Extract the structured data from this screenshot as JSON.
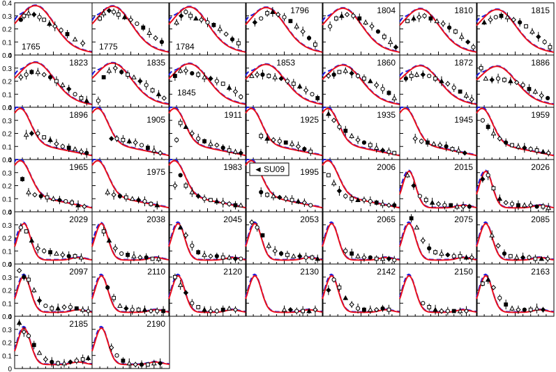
{
  "figure": {
    "legend": {
      "marker": "◄",
      "label": "SU09"
    },
    "colors": {
      "red": "#e8101e",
      "blue": "#1a1adc",
      "frame": "#000000"
    }
  },
  "chart_data": {
    "type": "scatter",
    "ylim": [
      0,
      0.4
    ],
    "y_ticks": [
      "0",
      "0.1",
      "0.2",
      "0.3",
      "0.4"
    ],
    "xlabel": "",
    "ylabel": "",
    "grid": false,
    "legend_placement": "inside panel 1995",
    "panels": [
      {
        "energy": "1765",
        "x": [
          0.08,
          0.12,
          0.18,
          0.25,
          0.32,
          0.38,
          0.45,
          0.52,
          0.6,
          0.68,
          0.78,
          0.88
        ],
        "y": [
          0.27,
          0.3,
          0.32,
          0.31,
          0.29,
          0.27,
          0.24,
          0.22,
          0.19,
          0.16,
          0.12,
          0.09
        ]
      },
      {
        "energy": "1775",
        "x": [
          0.1,
          0.15,
          0.22,
          0.28,
          0.34,
          0.42,
          0.5,
          0.58,
          0.66,
          0.74,
          0.82,
          0.9
        ],
        "y": [
          0.28,
          0.32,
          0.34,
          0.33,
          0.31,
          0.29,
          0.27,
          0.24,
          0.21,
          0.17,
          0.13,
          0.1
        ]
      },
      {
        "energy": "1784",
        "x": [
          0.1,
          0.16,
          0.22,
          0.28,
          0.35,
          0.42,
          0.5,
          0.58,
          0.66,
          0.74,
          0.82,
          0.9
        ],
        "y": [
          0.25,
          0.3,
          0.33,
          0.3,
          0.28,
          0.27,
          0.25,
          0.23,
          0.2,
          0.16,
          0.12,
          0.09
        ]
      },
      {
        "energy": "1796",
        "x": [
          0.12,
          0.2,
          0.28,
          0.35,
          0.42,
          0.5,
          0.58,
          0.66,
          0.74,
          0.82,
          0.9
        ],
        "y": [
          0.25,
          0.28,
          0.32,
          0.33,
          0.31,
          0.29,
          0.26,
          0.22,
          0.18,
          0.13,
          0.08
        ]
      },
      {
        "energy": "1804",
        "x": [
          0.1,
          0.18,
          0.25,
          0.32,
          0.4,
          0.48,
          0.56,
          0.64,
          0.72,
          0.8,
          0.88,
          0.95
        ],
        "y": [
          0.22,
          0.28,
          0.3,
          0.31,
          0.3,
          0.28,
          0.25,
          0.22,
          0.18,
          0.14,
          0.1,
          0.06
        ]
      },
      {
        "energy": "1810",
        "x": [
          0.1,
          0.18,
          0.25,
          0.32,
          0.4,
          0.48,
          0.56,
          0.64,
          0.72,
          0.8,
          0.88,
          0.95
        ],
        "y": [
          0.26,
          0.28,
          0.29,
          0.3,
          0.28,
          0.26,
          0.24,
          0.21,
          0.18,
          0.14,
          0.1,
          0.06
        ]
      },
      {
        "energy": "1815",
        "x": [
          0.1,
          0.18,
          0.25,
          0.32,
          0.4,
          0.48,
          0.56,
          0.64,
          0.72,
          0.8,
          0.88,
          0.95
        ],
        "y": [
          0.25,
          0.27,
          0.29,
          0.3,
          0.29,
          0.27,
          0.25,
          0.22,
          0.18,
          0.14,
          0.1,
          0.06
        ]
      },
      {
        "energy": "1823",
        "x": [
          0.08,
          0.15,
          0.22,
          0.3,
          0.38,
          0.46,
          0.54,
          0.62,
          0.7,
          0.78,
          0.86,
          0.93
        ],
        "y": [
          0.23,
          0.25,
          0.27,
          0.27,
          0.25,
          0.23,
          0.2,
          0.17,
          0.14,
          0.1,
          0.07,
          0.05
        ]
      },
      {
        "energy": "1835",
        "x": [
          0.08,
          0.15,
          0.22,
          0.3,
          0.38,
          0.46,
          0.54,
          0.62,
          0.7,
          0.78,
          0.86,
          0.93
        ],
        "y": [
          0.05,
          0.23,
          0.28,
          0.3,
          0.27,
          0.25,
          0.23,
          0.2,
          0.17,
          0.13,
          0.1,
          0.07
        ]
      },
      {
        "energy": "1845",
        "x": [
          0.08,
          0.15,
          0.22,
          0.3,
          0.38,
          0.46,
          0.54,
          0.62,
          0.7,
          0.78,
          0.86,
          0.93
        ],
        "y": [
          0.24,
          0.28,
          0.28,
          0.26,
          0.25,
          0.23,
          0.22,
          0.2,
          0.18,
          0.15,
          0.12,
          0.08
        ]
      },
      {
        "energy": "1853",
        "x": [
          0.08,
          0.15,
          0.22,
          0.3,
          0.38,
          0.46,
          0.54,
          0.62,
          0.7,
          0.78,
          0.86,
          0.93
        ],
        "y": [
          0.24,
          0.25,
          0.25,
          0.24,
          0.23,
          0.22,
          0.2,
          0.18,
          0.16,
          0.13,
          0.1,
          0.07
        ]
      },
      {
        "energy": "1860",
        "x": [
          0.08,
          0.15,
          0.22,
          0.3,
          0.38,
          0.46,
          0.54,
          0.62,
          0.7,
          0.78,
          0.86,
          0.93
        ],
        "y": [
          0.24,
          0.25,
          0.27,
          0.28,
          0.26,
          0.24,
          0.22,
          0.2,
          0.17,
          0.14,
          0.11,
          0.07
        ]
      },
      {
        "energy": "1872",
        "x": [
          0.08,
          0.15,
          0.22,
          0.3,
          0.38,
          0.46,
          0.54,
          0.62,
          0.7,
          0.78,
          0.86,
          0.93
        ],
        "y": [
          0.22,
          0.24,
          0.25,
          0.25,
          0.24,
          0.22,
          0.2,
          0.18,
          0.15,
          0.12,
          0.09,
          0.06
        ]
      },
      {
        "energy": "1886",
        "x": [
          0.06,
          0.12,
          0.2,
          0.28,
          0.36,
          0.44,
          0.52,
          0.6,
          0.68,
          0.76,
          0.84,
          0.92
        ],
        "y": [
          0.3,
          0.22,
          0.21,
          0.22,
          0.21,
          0.2,
          0.19,
          0.17,
          0.14,
          0.12,
          0.09,
          0.07
        ]
      },
      {
        "energy": "1896",
        "x": [
          0.15,
          0.22,
          0.3,
          0.38,
          0.46,
          0.54,
          0.62,
          0.7,
          0.78,
          0.86,
          0.93
        ],
        "y": [
          0.19,
          0.2,
          0.2,
          0.17,
          0.15,
          0.12,
          0.1,
          0.09,
          0.08,
          0.06,
          0.05
        ]
      },
      {
        "energy": "1905",
        "x": [
          0.25,
          0.32,
          0.4,
          0.48,
          0.56,
          0.64,
          0.72,
          0.8,
          0.88
        ],
        "y": [
          0.16,
          0.16,
          0.15,
          0.14,
          0.13,
          0.11,
          0.09,
          0.07,
          0.05
        ]
      },
      {
        "energy": "1911",
        "x": [
          0.1,
          0.15,
          0.22,
          0.3,
          0.38,
          0.46,
          0.54,
          0.62,
          0.7,
          0.78,
          0.86,
          0.93
        ],
        "y": [
          0.15,
          0.28,
          0.25,
          0.2,
          0.16,
          0.14,
          0.12,
          0.11,
          0.09,
          0.07,
          0.06,
          0.05
        ]
      },
      {
        "energy": "1925",
        "x": [
          0.2,
          0.28,
          0.36,
          0.44,
          0.52,
          0.6,
          0.68,
          0.76,
          0.84
        ],
        "y": [
          0.18,
          0.16,
          0.15,
          0.14,
          0.13,
          0.12,
          0.1,
          0.08,
          0.06
        ]
      },
      {
        "energy": "1935",
        "x": [
          0.08,
          0.15,
          0.22,
          0.3,
          0.38,
          0.46,
          0.54,
          0.62,
          0.7,
          0.78,
          0.86,
          0.93
        ],
        "y": [
          0.35,
          0.3,
          0.25,
          0.22,
          0.18,
          0.15,
          0.13,
          0.11,
          0.09,
          0.07,
          0.06,
          0.05
        ]
      },
      {
        "energy": "1945",
        "x": [
          0.2,
          0.28,
          0.36,
          0.44,
          0.52,
          0.6,
          0.68,
          0.76,
          0.84
        ],
        "y": [
          0.16,
          0.14,
          0.13,
          0.12,
          0.11,
          0.1,
          0.08,
          0.07,
          0.05
        ]
      },
      {
        "energy": "1959",
        "x": [
          0.08,
          0.15,
          0.22,
          0.3,
          0.38,
          0.46,
          0.54,
          0.62,
          0.7,
          0.78,
          0.86,
          0.93
        ],
        "y": [
          0.3,
          0.25,
          0.2,
          0.16,
          0.13,
          0.11,
          0.1,
          0.09,
          0.08,
          0.07,
          0.06,
          0.05
        ]
      },
      {
        "energy": "1965",
        "x": [
          0.1,
          0.18,
          0.26,
          0.34,
          0.42,
          0.5,
          0.58,
          0.66,
          0.74,
          0.82,
          0.9
        ],
        "y": [
          0.25,
          0.15,
          0.13,
          0.12,
          0.11,
          0.1,
          0.09,
          0.08,
          0.07,
          0.05,
          0.04
        ]
      },
      {
        "energy": "1975",
        "x": [
          0.2,
          0.28,
          0.36,
          0.44,
          0.52,
          0.6,
          0.68,
          0.76,
          0.84
        ],
        "y": [
          0.15,
          0.13,
          0.12,
          0.11,
          0.1,
          0.09,
          0.08,
          0.06,
          0.05
        ]
      },
      {
        "energy": "1983",
        "x": [
          0.08,
          0.15,
          0.22,
          0.3,
          0.38,
          0.46,
          0.54,
          0.62,
          0.7,
          0.78,
          0.86,
          0.93
        ],
        "y": [
          0.2,
          0.28,
          0.2,
          0.15,
          0.12,
          0.1,
          0.09,
          0.08,
          0.07,
          0.06,
          0.05,
          0.05
        ]
      },
      {
        "energy": "1995",
        "x": [
          0.2,
          0.28,
          0.36,
          0.44,
          0.52,
          0.6,
          0.68,
          0.76,
          0.84
        ],
        "y": [
          0.15,
          0.13,
          0.12,
          0.11,
          0.1,
          0.09,
          0.08,
          0.07,
          0.05
        ]
      },
      {
        "energy": "2006",
        "x": [
          0.08,
          0.15,
          0.22,
          0.3,
          0.38,
          0.46,
          0.54,
          0.62,
          0.7,
          0.78,
          0.86,
          0.93
        ],
        "y": [
          0.28,
          0.22,
          0.16,
          0.12,
          0.1,
          0.09,
          0.09,
          0.08,
          0.07,
          0.06,
          0.05,
          0.05
        ]
      },
      {
        "energy": "2015",
        "x": [
          0.1,
          0.18,
          0.26,
          0.34,
          0.42,
          0.5,
          0.58,
          0.66,
          0.74,
          0.82,
          0.9
        ],
        "y": [
          0.28,
          0.2,
          0.12,
          0.09,
          0.07,
          0.06,
          0.05,
          0.05,
          0.04,
          0.04,
          0.04
        ]
      },
      {
        "energy": "2026",
        "x": [
          0.08,
          0.15,
          0.22,
          0.3,
          0.38,
          0.46,
          0.54,
          0.62,
          0.7,
          0.78,
          0.86,
          0.93
        ],
        "y": [
          0.25,
          0.28,
          0.18,
          0.1,
          0.07,
          0.06,
          0.05,
          0.05,
          0.05,
          0.04,
          0.04,
          0.03
        ]
      },
      {
        "energy": "2029",
        "x": [
          0.08,
          0.15,
          0.22,
          0.3,
          0.38,
          0.46,
          0.54,
          0.62,
          0.7,
          0.78,
          0.86
        ],
        "y": [
          0.28,
          0.25,
          0.18,
          0.12,
          0.1,
          0.09,
          0.08,
          0.07,
          0.06,
          0.06,
          0.05
        ]
      },
      {
        "energy": "2038",
        "x": [
          0.15,
          0.22,
          0.3,
          0.38,
          0.46,
          0.54,
          0.62,
          0.7,
          0.78,
          0.86
        ],
        "y": [
          0.25,
          0.18,
          0.12,
          0.08,
          0.07,
          0.06,
          0.05,
          0.05,
          0.04,
          0.04
        ]
      },
      {
        "energy": "2045",
        "x": [
          0.15,
          0.22,
          0.3,
          0.38,
          0.46,
          0.54,
          0.62,
          0.7,
          0.78,
          0.86,
          0.93
        ],
        "y": [
          0.28,
          0.22,
          0.14,
          0.09,
          0.07,
          0.06,
          0.06,
          0.05,
          0.05,
          0.04,
          0.04
        ]
      },
      {
        "energy": "2053",
        "x": [
          0.08,
          0.15,
          0.22,
          0.3,
          0.38,
          0.46,
          0.54,
          0.62,
          0.7,
          0.78,
          0.86,
          0.93
        ],
        "y": [
          0.32,
          0.28,
          0.22,
          0.14,
          0.1,
          0.08,
          0.07,
          0.06,
          0.06,
          0.05,
          0.05,
          0.04
        ]
      },
      {
        "energy": "2065",
        "x": [
          0.3,
          0.38,
          0.46,
          0.54,
          0.62,
          0.7,
          0.78,
          0.86,
          0.93
        ],
        "y": [
          0.1,
          0.08,
          0.06,
          0.05,
          0.05,
          0.04,
          0.04,
          0.04,
          0.03
        ]
      },
      {
        "energy": "2075",
        "x": [
          0.15,
          0.22,
          0.3,
          0.38,
          0.46,
          0.54,
          0.62,
          0.7,
          0.78,
          0.86,
          0.93
        ],
        "y": [
          0.35,
          0.28,
          0.18,
          0.12,
          0.09,
          0.08,
          0.07,
          0.06,
          0.06,
          0.05,
          0.05
        ]
      },
      {
        "energy": "2085",
        "x": [
          0.2,
          0.28,
          0.36,
          0.44,
          0.52,
          0.6,
          0.68,
          0.76,
          0.84,
          0.92
        ],
        "y": [
          0.22,
          0.14,
          0.08,
          0.06,
          0.05,
          0.05,
          0.05,
          0.04,
          0.04,
          0.04
        ]
      },
      {
        "energy": "2097",
        "x": [
          0.06,
          0.12,
          0.18,
          0.25,
          0.32,
          0.4,
          0.48,
          0.56,
          0.64,
          0.72,
          0.8,
          0.88,
          0.95
        ],
        "y": [
          0.35,
          0.3,
          0.28,
          0.2,
          0.12,
          0.08,
          0.06,
          0.06,
          0.07,
          0.07,
          0.06,
          0.05,
          0.04
        ]
      },
      {
        "energy": "2110",
        "x": [
          0.2,
          0.28,
          0.36,
          0.44,
          0.52,
          0.6,
          0.68,
          0.76,
          0.84,
          0.92
        ],
        "y": [
          0.22,
          0.14,
          0.08,
          0.06,
          0.05,
          0.05,
          0.05,
          0.04,
          0.04,
          0.04
        ]
      },
      {
        "energy": "2120",
        "x": [
          0.08,
          0.15,
          0.22,
          0.3,
          0.38,
          0.46,
          0.54,
          0.62,
          0.7,
          0.78,
          0.86
        ],
        "y": [
          0.3,
          0.24,
          0.18,
          0.1,
          0.07,
          0.05,
          0.04,
          0.04,
          0.05,
          0.06,
          0.05
        ]
      },
      {
        "energy": "2130",
        "x": [
          0.5,
          0.58,
          0.66,
          0.74,
          0.82,
          0.9
        ],
        "y": [
          0.05,
          0.05,
          0.04,
          0.04,
          0.04,
          0.05
        ]
      },
      {
        "energy": "2142",
        "x": [
          0.08,
          0.15,
          0.22,
          0.3,
          0.38,
          0.46,
          0.54,
          0.62,
          0.7,
          0.78,
          0.86
        ],
        "y": [
          0.2,
          0.28,
          0.22,
          0.14,
          0.09,
          0.06,
          0.05,
          0.05,
          0.05,
          0.06,
          0.05
        ]
      },
      {
        "energy": "2150",
        "x": [
          0.3,
          0.38,
          0.46,
          0.54,
          0.62,
          0.7,
          0.78,
          0.86
        ],
        "y": [
          0.1,
          0.07,
          0.05,
          0.04,
          0.04,
          0.04,
          0.04,
          0.04
        ]
      },
      {
        "energy": "2163",
        "x": [
          0.08,
          0.15,
          0.22,
          0.3,
          0.38,
          0.46,
          0.54,
          0.62,
          0.7,
          0.78,
          0.86
        ],
        "y": [
          0.25,
          0.28,
          0.22,
          0.14,
          0.09,
          0.06,
          0.05,
          0.05,
          0.05,
          0.06,
          0.05
        ]
      },
      {
        "energy": "2185",
        "x": [
          0.06,
          0.12,
          0.18,
          0.25,
          0.32,
          0.4,
          0.48,
          0.56,
          0.64,
          0.72,
          0.8,
          0.88,
          0.95
        ],
        "y": [
          0.35,
          0.28,
          0.25,
          0.18,
          0.12,
          0.07,
          0.05,
          0.04,
          0.04,
          0.05,
          0.06,
          0.07,
          0.08
        ]
      },
      {
        "energy": "2190",
        "x": [
          0.25,
          0.32,
          0.4,
          0.48,
          0.56,
          0.64,
          0.72,
          0.8,
          0.88
        ],
        "y": [
          0.16,
          0.1,
          0.06,
          0.04,
          0.03,
          0.03,
          0.03,
          0.04,
          0.04
        ]
      }
    ]
  }
}
